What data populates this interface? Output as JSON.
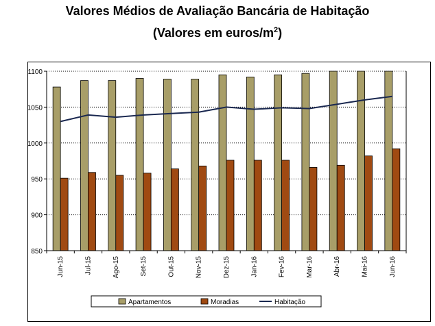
{
  "title": "Valores Médios de Avaliação Bancária de Habitação",
  "subtitle_prefix": "(Valores em euros/m",
  "subtitle_sup": "2",
  "subtitle_suffix": ")",
  "chart_data": {
    "type": "bar",
    "categories": [
      "Jun-15",
      "Jul-15",
      "Ago-15",
      "Set-15",
      "Out-15",
      "Nov-15",
      "Dez-15",
      "Jan-16",
      "Fev-16",
      "Mar-16",
      "Abr-16",
      "Mai-16",
      "Jun-16"
    ],
    "ylim": [
      850,
      1100
    ],
    "yticks": [
      850,
      900,
      950,
      1000,
      1050,
      1100
    ],
    "grid": true,
    "legend_position": "bottom",
    "series": [
      {
        "name": "Apartamentos",
        "type": "bar",
        "color": "#a89e68",
        "values": [
          1078,
          1087,
          1087,
          1090,
          1089,
          1089,
          1095,
          1092,
          1095,
          1097,
          1100,
          1100,
          1100
        ]
      },
      {
        "name": "Moradias",
        "type": "bar",
        "color": "#a04a12",
        "values": [
          951,
          959,
          955,
          958,
          964,
          968,
          976,
          976,
          976,
          966,
          969,
          982,
          992
        ]
      },
      {
        "name": "Habitação",
        "type": "line",
        "color": "#1a2850",
        "values": [
          1030,
          1039,
          1036,
          1039,
          1041,
          1043,
          1050,
          1047,
          1049,
          1048,
          1054,
          1060,
          1065
        ]
      }
    ]
  }
}
